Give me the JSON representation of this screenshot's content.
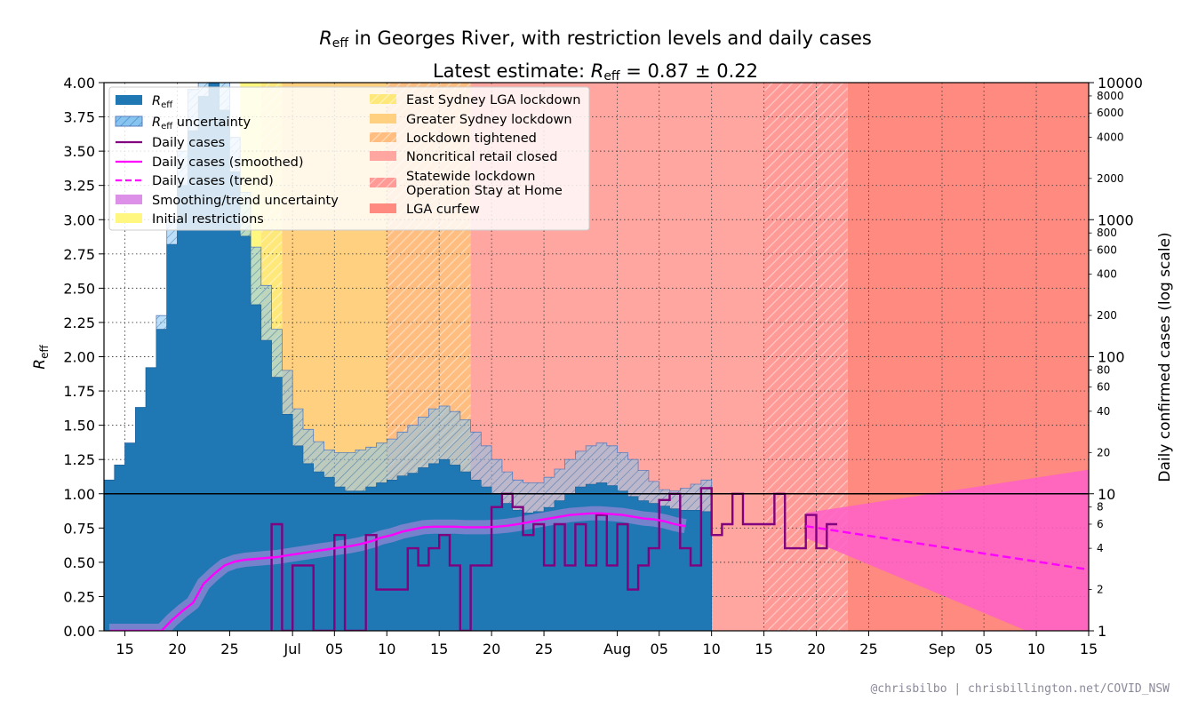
{
  "title": {
    "line1_r": "R",
    "line1_sub": "eff",
    "line1_rest": " in Georges River, with restriction levels and daily cases",
    "line2_pre": "Latest estimate: ",
    "line2_r": "R",
    "line2_sub": "eff",
    "line2_rest": " = 0.87 ± 0.22"
  },
  "credit": "@chrisbilbo | chrisbillington.net/COVID_NSW",
  "chart_data": {
    "type": "area",
    "ylabel_left": {
      "main": "R",
      "sub": "eff"
    },
    "ylabel_right": "Daily confirmed cases (log scale)",
    "x_range": [
      "2021-06-13",
      "2021-09-15"
    ],
    "ylim_left": [
      0,
      4
    ],
    "ylim_right": [
      1,
      10000
    ],
    "right_scale": "log",
    "grid": "dotted",
    "reference_line": 1.0,
    "x_ticks": [
      {
        "date": "2021-06-15",
        "label": "15"
      },
      {
        "date": "2021-06-20",
        "label": "20"
      },
      {
        "date": "2021-06-25",
        "label": "25"
      },
      {
        "date": "2021-07-01",
        "label": "Jul"
      },
      {
        "date": "2021-07-05",
        "label": "05"
      },
      {
        "date": "2021-07-10",
        "label": "10"
      },
      {
        "date": "2021-07-15",
        "label": "15"
      },
      {
        "date": "2021-07-20",
        "label": "20"
      },
      {
        "date": "2021-07-25",
        "label": "25"
      },
      {
        "date": "2021-08-01",
        "label": "Aug"
      },
      {
        "date": "2021-08-05",
        "label": "05"
      },
      {
        "date": "2021-08-10",
        "label": "10"
      },
      {
        "date": "2021-08-15",
        "label": "15"
      },
      {
        "date": "2021-08-20",
        "label": "20"
      },
      {
        "date": "2021-08-25",
        "label": "25"
      },
      {
        "date": "2021-09-01",
        "label": "Sep"
      },
      {
        "date": "2021-09-05",
        "label": "05"
      },
      {
        "date": "2021-09-10",
        "label": "10"
      },
      {
        "date": "2021-09-15",
        "label": "15"
      }
    ],
    "y_ticks_left": [
      "0.00",
      "0.25",
      "0.50",
      "0.75",
      "1.00",
      "1.25",
      "1.50",
      "1.75",
      "2.00",
      "2.25",
      "2.50",
      "2.75",
      "3.00",
      "3.25",
      "3.50",
      "3.75",
      "4.00"
    ],
    "y_ticks_right_major": [
      "1",
      "10",
      "100",
      "1000",
      "10000"
    ],
    "y_ticks_right_minor": [
      "2",
      "4",
      "6",
      "8",
      "20",
      "40",
      "60",
      "80",
      "200",
      "400",
      "600",
      "800",
      "2000",
      "4000",
      "6000",
      "8000"
    ],
    "restriction_periods": [
      {
        "name": "Initial restrictions",
        "start": "2021-06-26",
        "end": "2021-06-28",
        "color": "#fff780"
      },
      {
        "name": "East Sydney LGA lockdown",
        "start": "2021-06-28",
        "end": "2021-06-30",
        "color": "#ffe87a",
        "hatch": true
      },
      {
        "name": "Greater Sydney lockdown",
        "start": "2021-06-30",
        "end": "2021-07-10",
        "color": "#ffd080"
      },
      {
        "name": "Lockdown tightened",
        "start": "2021-07-10",
        "end": "2021-07-18",
        "color": "#ffbe80",
        "hatch": true
      },
      {
        "name": "Noncritical retail closed",
        "start": "2021-07-18",
        "end": "2021-08-15",
        "color": "#ffa6a0"
      },
      {
        "name": "Statewide lockdown Operation Stay at Home",
        "start": "2021-08-15",
        "end": "2021-08-23",
        "color": "#ff9a96",
        "hatch": true
      },
      {
        "name": "LGA curfew",
        "start": "2021-08-23",
        "end": "2021-09-15",
        "color": "#ff8a80"
      }
    ],
    "series": [
      {
        "name": "Reff",
        "type": "step",
        "dates_start": "2021-06-13",
        "values": [
          1.1,
          1.21,
          1.37,
          1.63,
          1.92,
          2.2,
          2.82,
          3.25,
          3.65,
          3.9,
          4.0,
          3.8,
          3.35,
          2.88,
          2.38,
          2.12,
          1.85,
          1.58,
          1.35,
          1.22,
          1.16,
          1.12,
          1.05,
          1.02,
          1.02,
          1.05,
          1.08,
          1.1,
          1.13,
          1.15,
          1.19,
          1.22,
          1.25,
          1.21,
          1.16,
          1.1,
          1.05,
          1.0,
          0.93,
          0.88,
          0.86,
          0.87,
          0.9,
          0.95,
          1.0,
          1.05,
          1.07,
          1.08,
          1.06,
          1.02,
          0.98,
          0.95,
          0.93,
          0.91,
          0.89,
          0.88,
          0.88,
          0.87
        ]
      },
      {
        "name": "Reff uncertainty",
        "type": "band",
        "dates_start": "2021-06-13",
        "upper": [
          1.1,
          1.21,
          1.37,
          1.63,
          1.92,
          2.3,
          3.0,
          3.5,
          3.95,
          4.0,
          4.0,
          4.0,
          3.6,
          3.2,
          2.8,
          2.52,
          2.2,
          1.9,
          1.62,
          1.47,
          1.38,
          1.32,
          1.3,
          1.3,
          1.32,
          1.34,
          1.37,
          1.4,
          1.45,
          1.5,
          1.56,
          1.62,
          1.64,
          1.6,
          1.54,
          1.45,
          1.35,
          1.25,
          1.16,
          1.1,
          1.08,
          1.08,
          1.12,
          1.18,
          1.25,
          1.31,
          1.35,
          1.37,
          1.35,
          1.3,
          1.25,
          1.17,
          1.09,
          1.03,
          1.02,
          1.04,
          1.07,
          1.1
        ],
        "lower": [
          1.05,
          1.2,
          1.35,
          1.6,
          1.9,
          2.15,
          2.7,
          3.0,
          3.3,
          3.5,
          3.6,
          3.3,
          2.9,
          2.5,
          2.1,
          1.85,
          1.55,
          1.32,
          1.15,
          1.05,
          1.0,
          0.96,
          0.95,
          0.95,
          0.97,
          0.99,
          1.02,
          1.05,
          1.08,
          1.11,
          1.15,
          1.19,
          1.2,
          1.15,
          1.08,
          1.0,
          0.93,
          0.87,
          0.8,
          0.75,
          0.73,
          0.73,
          0.76,
          0.8,
          0.85,
          0.9,
          0.92,
          0.93,
          0.91,
          0.87,
          0.83,
          0.78,
          0.74,
          0.71,
          0.68,
          0.67,
          0.65,
          0.64
        ]
      },
      {
        "name": "Daily cases",
        "type": "step",
        "dates_start": "2021-06-13",
        "values": [
          0,
          0,
          0,
          0,
          0,
          0,
          0,
          0,
          0,
          0,
          0,
          0,
          0,
          0,
          0,
          0,
          6,
          1,
          3,
          3,
          1,
          1,
          5,
          1,
          1,
          5,
          2,
          2,
          2,
          4,
          3,
          4,
          5,
          3,
          1,
          3,
          3,
          8,
          10,
          8,
          5,
          6,
          3,
          6,
          3,
          6,
          3,
          7,
          3,
          6,
          2,
          3,
          4,
          9,
          10,
          4,
          3,
          11,
          5,
          6,
          10,
          6,
          6,
          6,
          10,
          4,
          4,
          7,
          4,
          6
        ]
      },
      {
        "name": "Daily cases (smoothed)",
        "type": "line",
        "dates_start": "2021-06-13",
        "values": [
          0.5,
          0.6,
          0.7,
          0.8,
          0.9,
          1.0,
          1.2,
          1.4,
          1.6,
          2.2,
          2.6,
          3.0,
          3.2,
          3.3,
          3.35,
          3.4,
          3.45,
          3.55,
          3.65,
          3.75,
          3.85,
          3.95,
          4.05,
          4.15,
          4.3,
          4.5,
          4.8,
          5.0,
          5.3,
          5.5,
          5.7,
          5.75,
          5.75,
          5.75,
          5.7,
          5.7,
          5.7,
          5.75,
          5.85,
          6.0,
          6.2,
          6.4,
          6.6,
          6.8,
          7.0,
          7.1,
          7.2,
          7.2,
          7.1,
          7.0,
          6.8,
          6.6,
          6.5,
          6.3,
          6.0,
          5.8
        ]
      },
      {
        "name": "Daily cases (trend)",
        "type": "dashed-line",
        "start_date": "2021-08-19",
        "end_date": "2021-09-15",
        "start_value": 5.8,
        "end_value": 2.8
      }
    ],
    "legend": {
      "placement": "top-left",
      "items_col1": [
        {
          "key": "reff",
          "label_main": "R",
          "label_sub": "eff",
          "label_rest": ""
        },
        {
          "key": "reff_unc",
          "label_main": "R",
          "label_sub": "eff",
          "label_rest": " uncertainty"
        },
        {
          "key": "cases",
          "label_main": "Daily cases"
        },
        {
          "key": "cases_smooth",
          "label_main": "Daily cases (smoothed)"
        },
        {
          "key": "cases_trend",
          "label_main": "Daily cases (trend)"
        },
        {
          "key": "smooth_unc",
          "label_main": "Smoothing/trend uncertainty"
        },
        {
          "key": "initial",
          "label_main": "Initial restrictions"
        }
      ],
      "items_col2": [
        {
          "key": "east",
          "label_main": "East Sydney LGA lockdown"
        },
        {
          "key": "greater",
          "label_main": "Greater Sydney lockdown"
        },
        {
          "key": "tightened",
          "label_main": "Lockdown tightened"
        },
        {
          "key": "retail",
          "label_main": "Noncritical retail closed"
        },
        {
          "key": "statewide",
          "label_main": "Statewide lockdown",
          "label_line2": "Operation Stay at Home"
        },
        {
          "key": "curfew",
          "label_main": "LGA curfew"
        }
      ]
    },
    "colors": {
      "reff": "#1f77b4",
      "reff_unc": "#87c5f0",
      "cases": "#800080",
      "cases_smooth": "#ff00ff",
      "smooth_unc": "#dd90e8",
      "trend_fill": "#ff5fc8",
      "initial": "#fff780",
      "east": "#ffe87a",
      "greater": "#ffd080",
      "tightened": "#ffbe80",
      "retail": "#ffa6a0",
      "statewide": "#ff9a96",
      "curfew": "#ff8a80"
    }
  }
}
